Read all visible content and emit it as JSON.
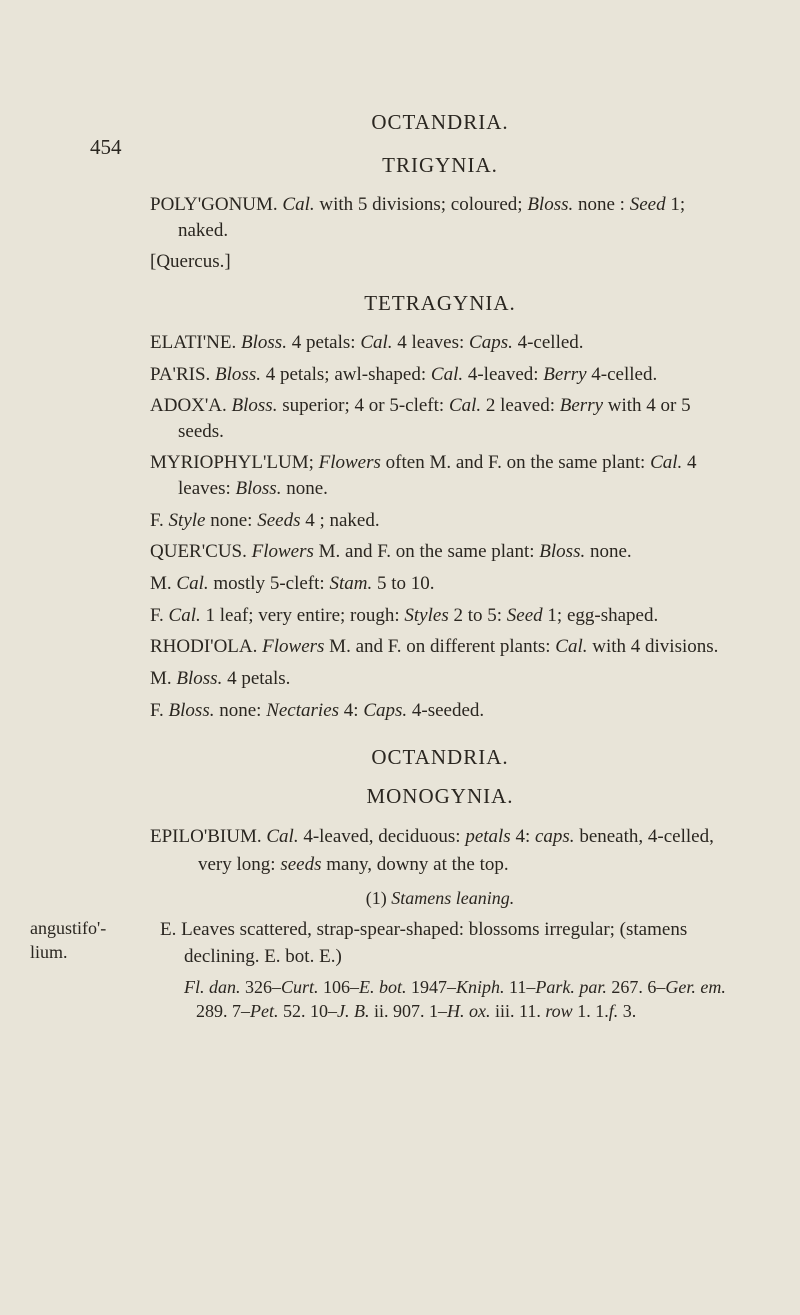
{
  "page_number": "454",
  "running_head": "OCTANDRIA.",
  "sections": [
    {
      "title": "TRIGYNIA.",
      "entries": [
        {
          "html": "POLY'GONUM. <i>Cal.</i> with 5 divisions; coloured; <i>Bloss.</i> none : <i>Seed</i> 1; naked."
        },
        {
          "html": "[Quercus.]"
        }
      ]
    },
    {
      "title": "TETRAGYNIA.",
      "entries": [
        {
          "html": "ELATI'NE. <i>Bloss.</i> 4 petals: <i>Cal.</i> 4 leaves: <i>Caps.</i> 4-celled."
        },
        {
          "html": "PA'RIS. <i>Bloss.</i> 4 petals; awl-shaped: <i>Cal.</i> 4-leaved: <i>Berry</i> 4-celled."
        },
        {
          "html": "ADOX'A. <i>Bloss.</i> superior; 4 or 5-cleft: <i>Cal.</i> 2 leaved: <i>Berry</i> with 4 or 5 seeds."
        },
        {
          "html": "MYRIOPHYL'LUM; <i>Flowers</i> often M. and F. on the same plant: <i>Cal.</i> 4 leaves: <i>Bloss.</i> none."
        },
        {
          "html": "F. <i>Style</i> none: <i>Seeds</i> 4 ; naked."
        },
        {
          "html": "QUER'CUS. <i>Flowers</i> M. and F. on the same plant: <i>Bloss.</i> none."
        },
        {
          "html": "M. <i>Cal.</i> mostly 5-cleft: <i>Stam.</i> 5 to 10."
        },
        {
          "html": "F. <i>Cal.</i> 1 leaf; very entire; rough: <i>Styles</i> 2 to 5: <i>Seed</i> 1; egg-shaped."
        },
        {
          "html": "RHODI'OLA. <i>Flowers</i> M. and F. on different plants: <i>Cal.</i> with 4 divisions."
        },
        {
          "html": "M. <i>Bloss.</i> 4 petals."
        },
        {
          "html": "F. <i>Bloss.</i> none: <i>Nectaries</i> 4: <i>Caps.</i> 4-seeded."
        }
      ]
    },
    {
      "title": "OCTANDRIA.",
      "sub": "MONOGYNIA.",
      "epilobium": "EPILO'BIUM. <i>Cal.</i> 4-leaved, deciduous: <i>petals</i> 4: <i>caps.</i> beneath, 4-celled, very long: <i>seeds</i> many, downy at the top.",
      "stamens_head": "(1) <i>Stamens leaning.</i>",
      "species": {
        "margin": "angustifo'-<br>lium.",
        "lines": [
          "E. Leaves scattered, strap-spear-shaped: blossoms irregular; (stamens declining. E. bot. E.)"
        ],
        "refs": "<i>Fl. dan.</i> 326–<i>Curt.</i> 106–<i>E. bot.</i> 1947–<i>Kniph.</i> 11–<i>Park. par.</i> 267. 6–<i>Ger. em.</i> 289. 7–<i>Pet.</i> 52. 10–<i>J. B.</i> ii. 907. 1–<i>H. ox.</i> iii. 11. <i>row</i> 1. 1.<i>f.</i> 3."
      }
    }
  ]
}
